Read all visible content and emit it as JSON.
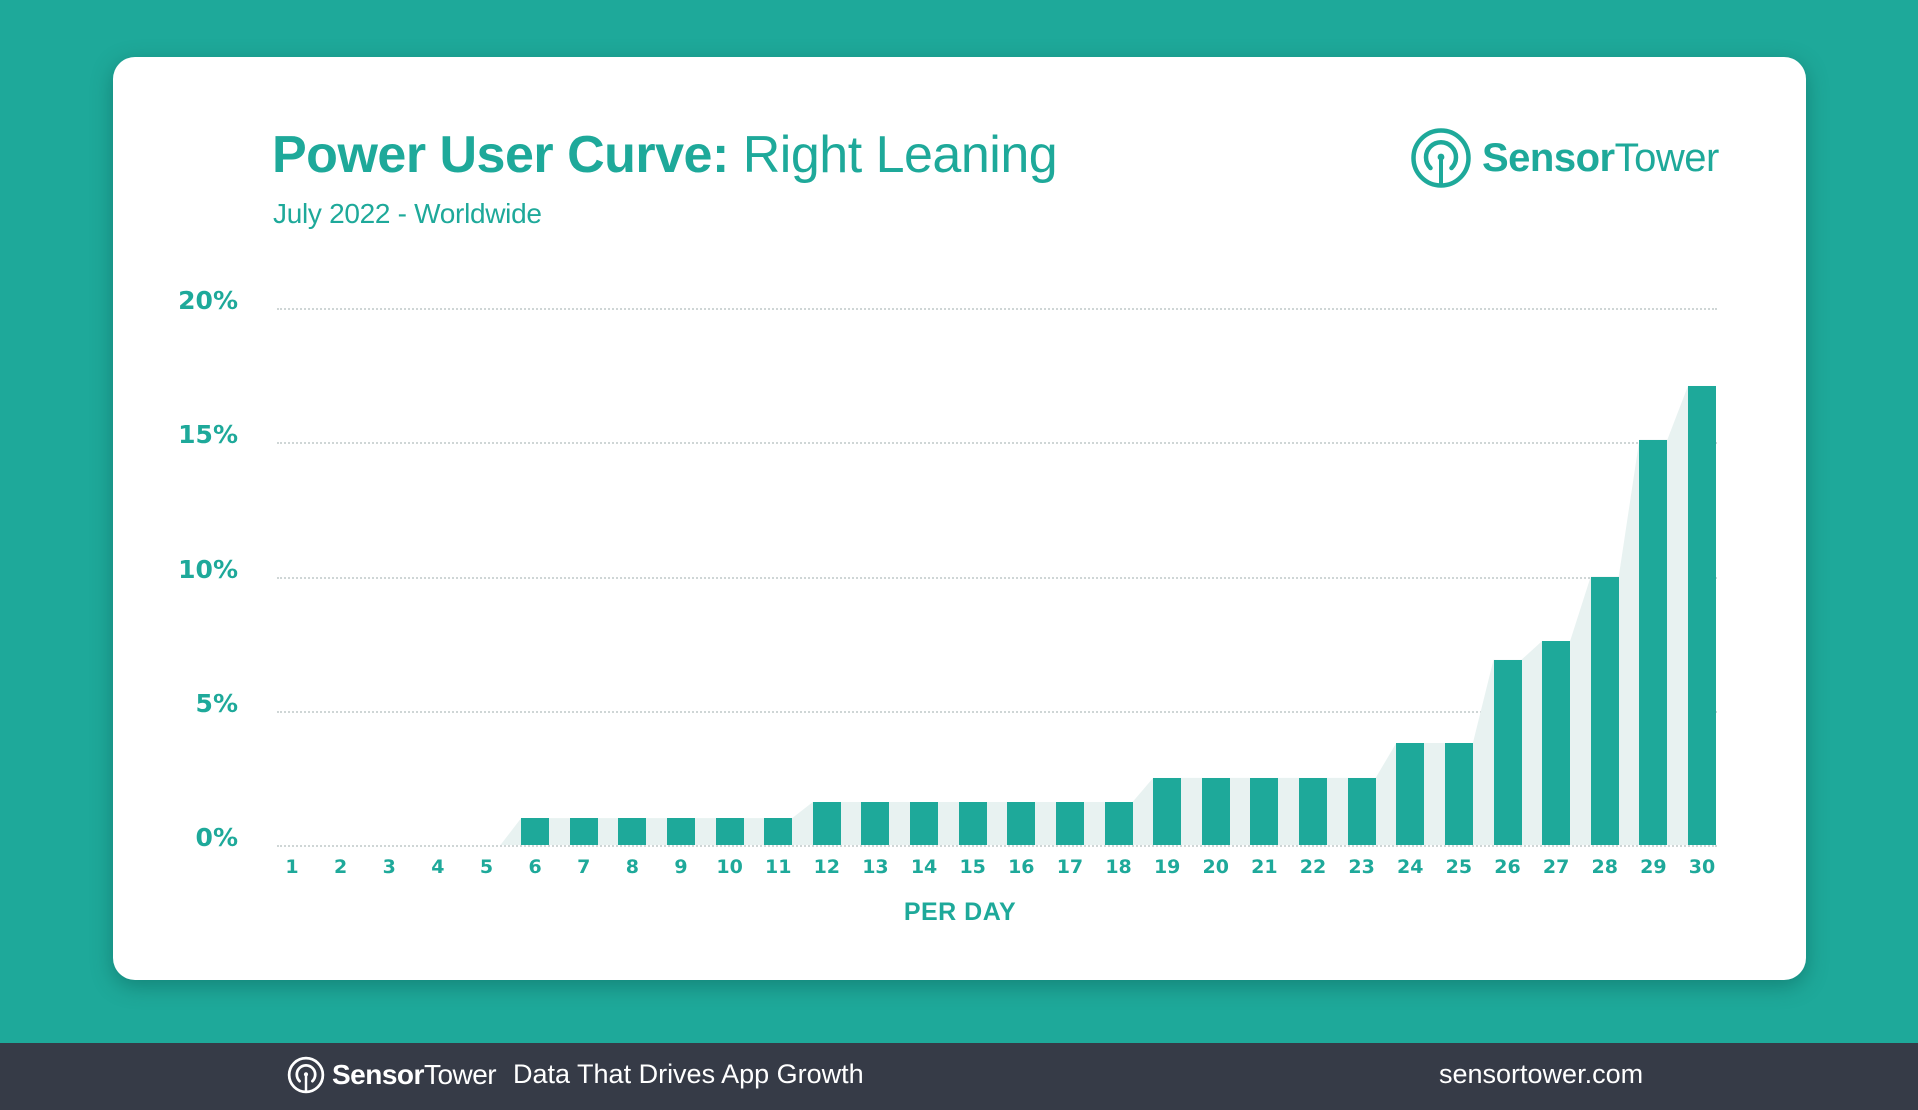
{
  "header": {
    "title_bold": "Power User Curve:",
    "title_light": "Right Leaning",
    "subtitle": "July 2022 - Worldwide"
  },
  "brand": {
    "name_bold": "Sensor",
    "name_light": "Tower",
    "icon": "sensor-tower-logo-icon"
  },
  "footer": {
    "brand_bold": "Sensor",
    "brand_light": "Tower",
    "tagline": "Data That Drives App Growth",
    "url": "sensortower.com"
  },
  "colors": {
    "background": "#1ea99a",
    "bar": "#1ea99a",
    "area": "#e8f2f1",
    "card": "#ffffff",
    "footer": "#363b47",
    "grid": "#cfd6d6"
  },
  "chart_data": {
    "type": "bar",
    "title": "Power User Curve: Right Leaning",
    "subtitle": "July 2022 - Worldwide",
    "xlabel": "PER DAY",
    "ylabel": "",
    "ylim": [
      0,
      20
    ],
    "yticks": [
      "0%",
      "5%",
      "10%",
      "15%",
      "20%"
    ],
    "grid": true,
    "legend": "none",
    "categories": [
      "1",
      "2",
      "3",
      "4",
      "5",
      "6",
      "7",
      "8",
      "9",
      "10",
      "11",
      "12",
      "13",
      "14",
      "15",
      "16",
      "17",
      "18",
      "19",
      "20",
      "21",
      "22",
      "23",
      "24",
      "25",
      "26",
      "27",
      "28",
      "29",
      "30"
    ],
    "values": [
      0,
      0,
      0,
      0,
      0,
      1.0,
      1.0,
      1.0,
      1.0,
      1.0,
      1.0,
      1.6,
      1.6,
      1.6,
      1.6,
      1.6,
      1.6,
      1.6,
      2.5,
      2.5,
      2.5,
      2.5,
      2.5,
      3.8,
      3.8,
      6.9,
      7.6,
      10.0,
      15.1,
      17.1
    ],
    "unit": "%",
    "annotations": [
      "Light shaded area traces the bar tops (curve envelope)"
    ]
  }
}
